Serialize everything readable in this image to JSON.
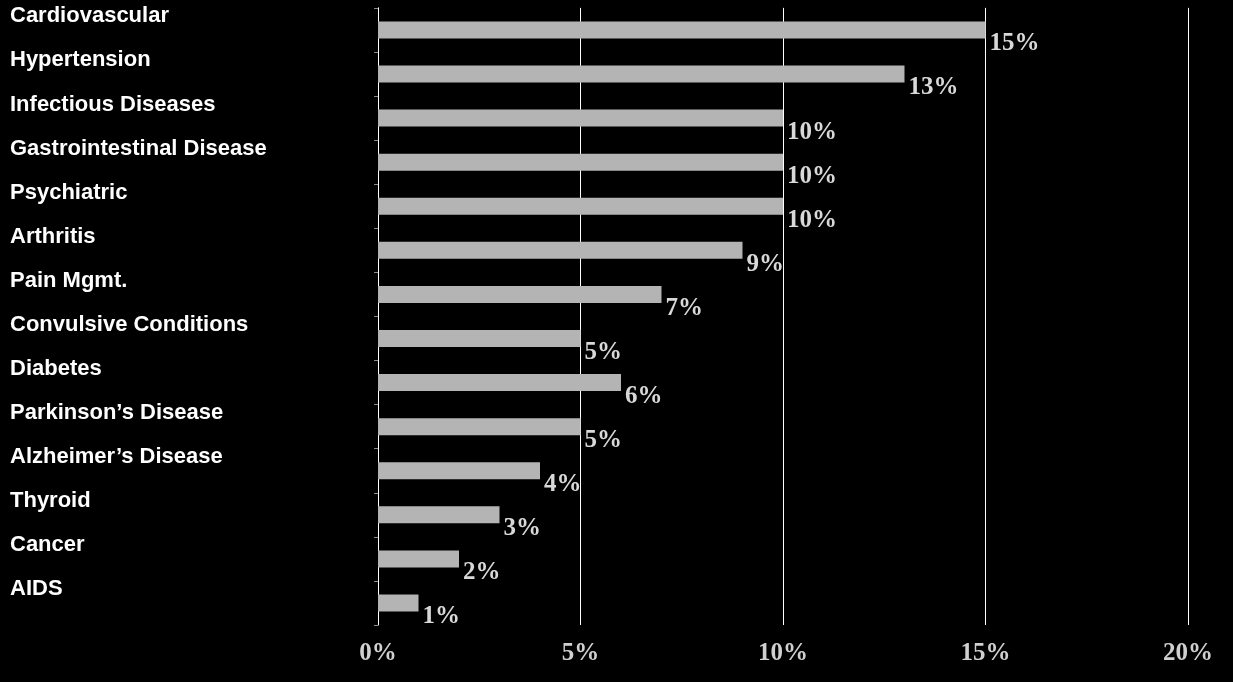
{
  "chart_data": {
    "type": "bar",
    "orientation": "horizontal",
    "categories": [
      "Cardiovascular",
      "Hypertension",
      "Infectious Diseases",
      "Gastrointestinal Disease",
      "Psychiatric",
      "Arthritis",
      "Pain Mgmt.",
      "Convulsive Conditions",
      "Diabetes",
      "Parkinson’s Disease",
      "Alzheimer’s Disease",
      "Thyroid",
      "Cancer",
      "AIDS"
    ],
    "values": [
      15,
      13,
      10,
      10,
      10,
      9,
      7,
      5,
      6,
      5,
      4,
      3,
      2,
      1
    ],
    "value_labels": [
      "15%",
      "13%",
      "10%",
      "10%",
      "10%",
      "9%",
      "7%",
      "5%",
      "6%",
      "5%",
      "4%",
      "3%",
      "2%",
      "1%"
    ],
    "color": "#b4b4b4",
    "xlim": [
      0,
      20
    ],
    "xticks": [
      {
        "value": 0,
        "label": "0%"
      },
      {
        "value": 5,
        "label": "5%"
      },
      {
        "value": 10,
        "label": "10%"
      },
      {
        "value": 15,
        "label": "15%"
      },
      {
        "value": 20,
        "label": "20%"
      }
    ],
    "grid": "x"
  }
}
